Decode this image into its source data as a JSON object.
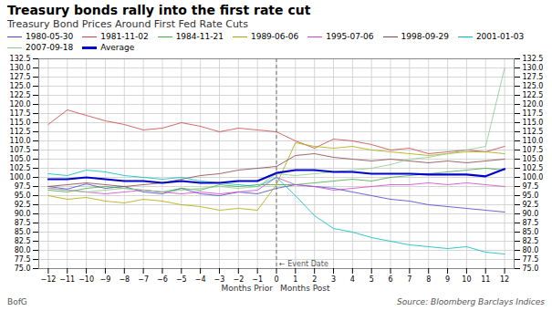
{
  "chart_data": {
    "type": "line",
    "title": "Treasury bonds rally into the first rate cut",
    "subtitle": "Treasury Bond Prices Around First Fed Rate Cuts",
    "xlabel_left": "Months Prior",
    "xlabel_right": "Months Post",
    "source": "Source:  Bloomberg Barclays Indices",
    "branding": "BofG",
    "annotations": [
      {
        "text": "← Event Date",
        "x": 0
      }
    ],
    "x": [
      -12,
      -11,
      -10,
      -9,
      -8,
      -7,
      -6,
      -5,
      -4,
      -3,
      -2,
      -1,
      0,
      1,
      2,
      3,
      4,
      5,
      6,
      7,
      8,
      9,
      10,
      11,
      12
    ],
    "xlim": [
      -12.5,
      12.5
    ],
    "xticks": [
      -12,
      -11,
      -10,
      -9,
      -8,
      -7,
      -6,
      -5,
      -4,
      -3,
      -2,
      -1,
      0,
      1,
      2,
      3,
      4,
      5,
      6,
      7,
      8,
      9,
      10,
      11,
      12
    ],
    "ylim": [
      75,
      132.5
    ],
    "yticks": [
      {
        "value": 75,
        "label": "75.0"
      },
      77.5,
      {
        "value": 80,
        "label": "80.0"
      },
      82.5,
      {
        "value": 85,
        "label": "85.0"
      },
      87.5,
      {
        "value": 90,
        "label": "90.0"
      },
      92.5,
      {
        "value": 95,
        "label": "95.0"
      },
      97.5,
      {
        "value": 100,
        "label": "100.0"
      },
      102.5,
      {
        "value": 105,
        "label": "105.0"
      },
      107.5,
      {
        "value": 110,
        "label": "110.0"
      },
      112.5,
      {
        "value": 115,
        "label": "115.0"
      },
      117.5,
      {
        "value": 120,
        "label": "120.0"
      },
      122.5,
      {
        "value": 125,
        "label": "125.0"
      },
      127.5,
      {
        "value": 130,
        "label": "130.0"
      },
      132.5
    ],
    "grid": true,
    "legend": "top",
    "series": [
      {
        "name": "1980-05-30",
        "color": "#4444cc",
        "values": [
          97.5,
          96.8,
          98.2,
          97.0,
          97.5,
          96.0,
          95.5,
          97.0,
          95.5,
          95.0,
          96.0,
          95.5,
          97.0,
          98.0,
          97.5,
          97.0,
          96.0,
          95.0,
          94.0,
          93.5,
          92.5,
          92.0,
          91.5,
          91.0,
          90.5
        ]
      },
      {
        "name": "1981-11-02",
        "color": "#cc4444",
        "values": [
          114.5,
          118.5,
          117.0,
          115.5,
          114.5,
          113.0,
          113.5,
          115.0,
          114.0,
          112.5,
          113.5,
          113.0,
          112.5,
          110.0,
          108.0,
          110.5,
          110.0,
          109.0,
          107.5,
          108.0,
          106.5,
          107.0,
          107.5,
          107.0,
          108.5
        ]
      },
      {
        "name": "1984-11-21",
        "color": "#44aa44",
        "values": [
          96.5,
          96.0,
          97.0,
          97.5,
          97.0,
          96.5,
          96.0,
          97.0,
          96.5,
          98.0,
          97.5,
          98.0,
          98.0,
          98.0,
          98.5,
          99.0,
          99.5,
          99.0,
          100.0,
          100.5,
          101.0,
          101.5,
          102.0,
          102.5,
          102.0
        ]
      },
      {
        "name": "1989-06-06",
        "color": "#aaaa00",
        "values": [
          95.0,
          94.0,
          94.5,
          93.5,
          93.0,
          94.0,
          93.5,
          92.5,
          92.0,
          91.0,
          91.5,
          91.0,
          98.0,
          109.5,
          108.5,
          108.0,
          108.5,
          107.5,
          107.0,
          106.5,
          106.0,
          106.5,
          107.0,
          107.0,
          106.5
        ]
      },
      {
        "name": "1995-07-06",
        "color": "#cc44cc",
        "values": [
          97.0,
          96.5,
          96.0,
          95.5,
          96.0,
          96.5,
          96.0,
          95.5,
          96.0,
          95.5,
          96.0,
          96.5,
          100.0,
          98.0,
          97.5,
          96.5,
          97.0,
          97.5,
          98.0,
          98.0,
          98.5,
          98.0,
          98.5,
          98.0,
          97.5
        ]
      },
      {
        "name": "1998-09-29",
        "color": "#884444",
        "values": [
          97.5,
          98.0,
          98.5,
          98.0,
          97.5,
          98.0,
          98.5,
          99.5,
          100.5,
          101.0,
          102.0,
          102.5,
          103.0,
          106.0,
          106.5,
          105.5,
          105.0,
          104.5,
          105.0,
          104.5,
          104.0,
          104.5,
          104.0,
          104.5,
          105.0
        ]
      },
      {
        "name": "2001-01-03",
        "color": "#00bbbb",
        "values": [
          101.0,
          100.5,
          102.0,
          101.5,
          100.5,
          100.0,
          99.5,
          100.0,
          99.0,
          98.5,
          98.0,
          97.5,
          100.0,
          95.0,
          89.5,
          86.0,
          85.0,
          83.5,
          82.5,
          81.5,
          81.0,
          80.5,
          81.0,
          79.5,
          79.0
        ]
      },
      {
        "name": "2007-09-18",
        "color": "#88cc88",
        "values": [
          97.0,
          96.5,
          96.0,
          96.5,
          97.0,
          96.5,
          96.0,
          96.5,
          97.0,
          97.5,
          97.0,
          97.5,
          101.0,
          100.5,
          101.0,
          101.5,
          102.0,
          102.5,
          103.5,
          105.0,
          105.5,
          106.5,
          107.5,
          108.5,
          130.0
        ]
      },
      {
        "name": "Average",
        "color": "#0000cc",
        "values": [
          99.5,
          99.5,
          100.0,
          99.5,
          99.0,
          99.0,
          98.5,
          99.0,
          98.5,
          98.5,
          99.0,
          99.0,
          101.2,
          102.0,
          102.0,
          101.5,
          101.5,
          101.0,
          101.0,
          101.0,
          100.8,
          100.8,
          100.8,
          100.3,
          102.3
        ]
      }
    ]
  }
}
